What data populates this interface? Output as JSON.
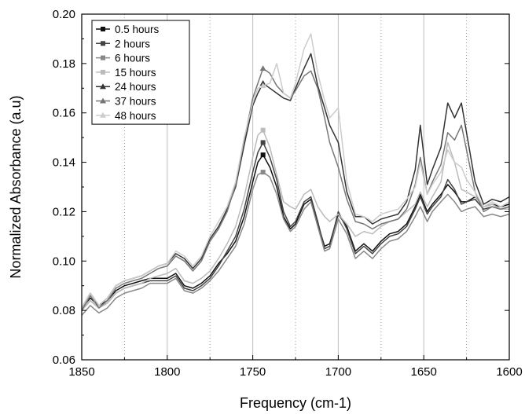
{
  "chart_data": {
    "type": "line",
    "title": "",
    "xlabel": "Frequency (cm-1)",
    "ylabel": "Normalized Absorbance (a.u)",
    "xlim": [
      1850,
      1600
    ],
    "ylim": [
      0.06,
      0.2
    ],
    "x_reversed": true,
    "x_ticks": [
      1850,
      1800,
      1750,
      1700,
      1650,
      1600
    ],
    "x_tick_labels": [
      "1850",
      "1800",
      "1750",
      "1700",
      "1650",
      "1600"
    ],
    "y_ticks": [
      0.06,
      0.08,
      0.1,
      0.12,
      0.14,
      0.16,
      0.18,
      0.2
    ],
    "y_tick_labels": [
      "0.06",
      "0.08",
      "0.10",
      "0.12",
      "0.14",
      "0.16",
      "0.18",
      "0.20"
    ],
    "gridlines_solid_x": [
      1800,
      1750,
      1700,
      1650
    ],
    "gridlines_dotted_x": [
      1825,
      1775,
      1725,
      1675,
      1625
    ],
    "legend_position": "top-left",
    "series": [
      {
        "name": "0.5 hours",
        "color": "#111111",
        "marker": "square",
        "x": [
          1850,
          1845,
          1840,
          1835,
          1830,
          1825,
          1820,
          1815,
          1810,
          1805,
          1800,
          1795,
          1790,
          1785,
          1780,
          1775,
          1770,
          1765,
          1760,
          1755,
          1750,
          1747,
          1744,
          1740,
          1736,
          1732,
          1728,
          1725,
          1720,
          1716,
          1712,
          1708,
          1705,
          1700,
          1695,
          1690,
          1685,
          1680,
          1675,
          1670,
          1665,
          1660,
          1655,
          1652,
          1648,
          1645,
          1640,
          1636,
          1632,
          1628,
          1625,
          1620,
          1615,
          1610,
          1605,
          1600
        ],
        "y": [
          0.081,
          0.085,
          0.082,
          0.084,
          0.088,
          0.09,
          0.091,
          0.092,
          0.093,
          0.093,
          0.093,
          0.095,
          0.09,
          0.089,
          0.091,
          0.094,
          0.099,
          0.103,
          0.108,
          0.118,
          0.132,
          0.14,
          0.143,
          0.138,
          0.13,
          0.118,
          0.113,
          0.115,
          0.123,
          0.125,
          0.115,
          0.106,
          0.107,
          0.119,
          0.114,
          0.104,
          0.107,
          0.104,
          0.108,
          0.111,
          0.112,
          0.115,
          0.122,
          0.127,
          0.12,
          0.123,
          0.127,
          0.131,
          0.128,
          0.124,
          0.124,
          0.126,
          0.122,
          0.123,
          0.122,
          0.123
        ]
      },
      {
        "name": "2 hours",
        "color": "#444444",
        "marker": "square",
        "x": [
          1850,
          1845,
          1840,
          1835,
          1830,
          1825,
          1820,
          1815,
          1810,
          1805,
          1800,
          1795,
          1790,
          1785,
          1780,
          1775,
          1770,
          1765,
          1760,
          1755,
          1750,
          1747,
          1744,
          1740,
          1736,
          1732,
          1728,
          1725,
          1720,
          1716,
          1712,
          1708,
          1705,
          1700,
          1695,
          1690,
          1685,
          1680,
          1675,
          1670,
          1665,
          1660,
          1655,
          1652,
          1648,
          1645,
          1640,
          1636,
          1632,
          1628,
          1625,
          1620,
          1615,
          1610,
          1605,
          1600
        ],
        "y": [
          0.08,
          0.084,
          0.081,
          0.083,
          0.087,
          0.089,
          0.09,
          0.091,
          0.092,
          0.092,
          0.092,
          0.094,
          0.089,
          0.088,
          0.09,
          0.093,
          0.098,
          0.104,
          0.11,
          0.121,
          0.136,
          0.144,
          0.148,
          0.142,
          0.133,
          0.12,
          0.114,
          0.116,
          0.124,
          0.126,
          0.116,
          0.105,
          0.106,
          0.12,
          0.113,
          0.103,
          0.106,
          0.103,
          0.107,
          0.11,
          0.111,
          0.114,
          0.121,
          0.126,
          0.119,
          0.122,
          0.126,
          0.133,
          0.129,
          0.123,
          0.124,
          0.125,
          0.121,
          0.122,
          0.121,
          0.122
        ]
      },
      {
        "name": "6 hours",
        "color": "#888888",
        "marker": "square",
        "x": [
          1850,
          1845,
          1840,
          1835,
          1830,
          1825,
          1820,
          1815,
          1810,
          1805,
          1800,
          1795,
          1790,
          1785,
          1780,
          1775,
          1770,
          1765,
          1760,
          1755,
          1750,
          1747,
          1744,
          1740,
          1736,
          1732,
          1728,
          1725,
          1720,
          1716,
          1712,
          1708,
          1705,
          1700,
          1695,
          1690,
          1685,
          1680,
          1675,
          1670,
          1665,
          1660,
          1655,
          1652,
          1648,
          1645,
          1640,
          1636,
          1632,
          1628,
          1625,
          1620,
          1615,
          1610,
          1605,
          1600
        ],
        "y": [
          0.078,
          0.082,
          0.079,
          0.081,
          0.085,
          0.087,
          0.088,
          0.089,
          0.091,
          0.091,
          0.091,
          0.093,
          0.088,
          0.087,
          0.089,
          0.092,
          0.096,
          0.101,
          0.106,
          0.115,
          0.129,
          0.135,
          0.136,
          0.134,
          0.127,
          0.117,
          0.112,
          0.114,
          0.121,
          0.124,
          0.114,
          0.104,
          0.105,
          0.117,
          0.111,
          0.101,
          0.104,
          0.101,
          0.105,
          0.108,
          0.109,
          0.112,
          0.118,
          0.122,
          0.116,
          0.12,
          0.124,
          0.127,
          0.124,
          0.12,
          0.121,
          0.122,
          0.118,
          0.119,
          0.118,
          0.119
        ]
      },
      {
        "name": "15 hours",
        "color": "#bbbbbb",
        "marker": "square",
        "x": [
          1850,
          1845,
          1840,
          1835,
          1830,
          1825,
          1820,
          1815,
          1810,
          1805,
          1800,
          1795,
          1790,
          1785,
          1780,
          1775,
          1770,
          1765,
          1760,
          1755,
          1750,
          1747,
          1744,
          1740,
          1736,
          1732,
          1728,
          1725,
          1720,
          1716,
          1712,
          1708,
          1705,
          1700,
          1695,
          1690,
          1685,
          1680,
          1675,
          1670,
          1665,
          1660,
          1655,
          1652,
          1648,
          1645,
          1640,
          1636,
          1632,
          1628,
          1625,
          1620,
          1615,
          1610,
          1605,
          1600
        ],
        "y": [
          0.08,
          0.084,
          0.081,
          0.083,
          0.087,
          0.089,
          0.09,
          0.091,
          0.093,
          0.094,
          0.095,
          0.097,
          0.092,
          0.091,
          0.093,
          0.096,
          0.101,
          0.107,
          0.114,
          0.126,
          0.142,
          0.151,
          0.153,
          0.146,
          0.135,
          0.124,
          0.122,
          0.121,
          0.127,
          0.129,
          0.122,
          0.118,
          0.116,
          0.119,
          0.115,
          0.11,
          0.112,
          0.111,
          0.114,
          0.116,
          0.117,
          0.12,
          0.123,
          0.128,
          0.122,
          0.126,
          0.132,
          0.148,
          0.14,
          0.129,
          0.128,
          0.126,
          0.122,
          0.123,
          0.121,
          0.121
        ]
      },
      {
        "name": "24 hours",
        "color": "#333333",
        "marker": "triangle",
        "x": [
          1850,
          1845,
          1840,
          1835,
          1830,
          1825,
          1820,
          1815,
          1810,
          1805,
          1800,
          1795,
          1790,
          1785,
          1780,
          1775,
          1770,
          1765,
          1760,
          1755,
          1750,
          1747,
          1744,
          1740,
          1736,
          1732,
          1728,
          1725,
          1720,
          1716,
          1712,
          1708,
          1705,
          1700,
          1695,
          1690,
          1685,
          1680,
          1675,
          1670,
          1665,
          1660,
          1655,
          1652,
          1648,
          1645,
          1640,
          1636,
          1632,
          1628,
          1625,
          1620,
          1615,
          1610,
          1605,
          1600
        ],
        "y": [
          0.081,
          0.087,
          0.082,
          0.085,
          0.09,
          0.092,
          0.093,
          0.094,
          0.096,
          0.098,
          0.099,
          0.103,
          0.101,
          0.097,
          0.101,
          0.109,
          0.114,
          0.121,
          0.13,
          0.147,
          0.163,
          0.168,
          0.172,
          0.17,
          0.168,
          0.166,
          0.165,
          0.17,
          0.178,
          0.184,
          0.171,
          0.162,
          0.155,
          0.148,
          0.128,
          0.118,
          0.118,
          0.115,
          0.117,
          0.118,
          0.119,
          0.124,
          0.137,
          0.155,
          0.131,
          0.137,
          0.146,
          0.164,
          0.158,
          0.164,
          0.152,
          0.132,
          0.123,
          0.125,
          0.124,
          0.126
        ]
      },
      {
        "name": "37 hours",
        "color": "#777777",
        "marker": "triangle",
        "x": [
          1850,
          1845,
          1840,
          1835,
          1830,
          1825,
          1820,
          1815,
          1810,
          1805,
          1800,
          1795,
          1790,
          1785,
          1780,
          1775,
          1770,
          1765,
          1760,
          1755,
          1750,
          1747,
          1744,
          1740,
          1736,
          1732,
          1728,
          1725,
          1720,
          1716,
          1712,
          1708,
          1705,
          1700,
          1695,
          1690,
          1685,
          1680,
          1675,
          1670,
          1665,
          1660,
          1655,
          1652,
          1648,
          1645,
          1640,
          1636,
          1632,
          1628,
          1625,
          1620,
          1615,
          1610,
          1605,
          1600
        ],
        "y": [
          0.08,
          0.086,
          0.081,
          0.084,
          0.089,
          0.091,
          0.092,
          0.093,
          0.095,
          0.097,
          0.098,
          0.102,
          0.1,
          0.096,
          0.1,
          0.108,
          0.113,
          0.12,
          0.131,
          0.149,
          0.166,
          0.172,
          0.178,
          0.176,
          0.171,
          0.168,
          0.166,
          0.169,
          0.175,
          0.177,
          0.17,
          0.158,
          0.148,
          0.138,
          0.125,
          0.116,
          0.115,
          0.113,
          0.115,
          0.116,
          0.117,
          0.121,
          0.131,
          0.142,
          0.127,
          0.132,
          0.139,
          0.152,
          0.149,
          0.155,
          0.145,
          0.128,
          0.12,
          0.122,
          0.121,
          0.122
        ]
      },
      {
        "name": "48 hours",
        "color": "#cccccc",
        "marker": "triangle",
        "x": [
          1850,
          1845,
          1840,
          1835,
          1830,
          1825,
          1820,
          1815,
          1810,
          1805,
          1800,
          1795,
          1790,
          1785,
          1780,
          1775,
          1770,
          1765,
          1760,
          1755,
          1750,
          1747,
          1744,
          1740,
          1736,
          1732,
          1728,
          1725,
          1720,
          1716,
          1712,
          1708,
          1705,
          1700,
          1695,
          1690,
          1685,
          1680,
          1675,
          1670,
          1665,
          1660,
          1655,
          1652,
          1648,
          1645,
          1640,
          1636,
          1632,
          1628,
          1625,
          1620,
          1615,
          1610,
          1605,
          1600
        ],
        "y": [
          0.081,
          0.087,
          0.082,
          0.085,
          0.09,
          0.092,
          0.093,
          0.094,
          0.096,
          0.098,
          0.099,
          0.104,
          0.102,
          0.098,
          0.102,
          0.11,
          0.116,
          0.122,
          0.132,
          0.15,
          0.164,
          0.17,
          0.171,
          0.172,
          0.18,
          0.168,
          0.166,
          0.172,
          0.186,
          0.192,
          0.176,
          0.165,
          0.158,
          0.162,
          0.132,
          0.119,
          0.118,
          0.116,
          0.119,
          0.12,
          0.121,
          0.125,
          0.13,
          0.14,
          0.127,
          0.131,
          0.136,
          0.145,
          0.14,
          0.138,
          0.133,
          0.128,
          0.122,
          0.124,
          0.122,
          0.124
        ]
      }
    ]
  }
}
